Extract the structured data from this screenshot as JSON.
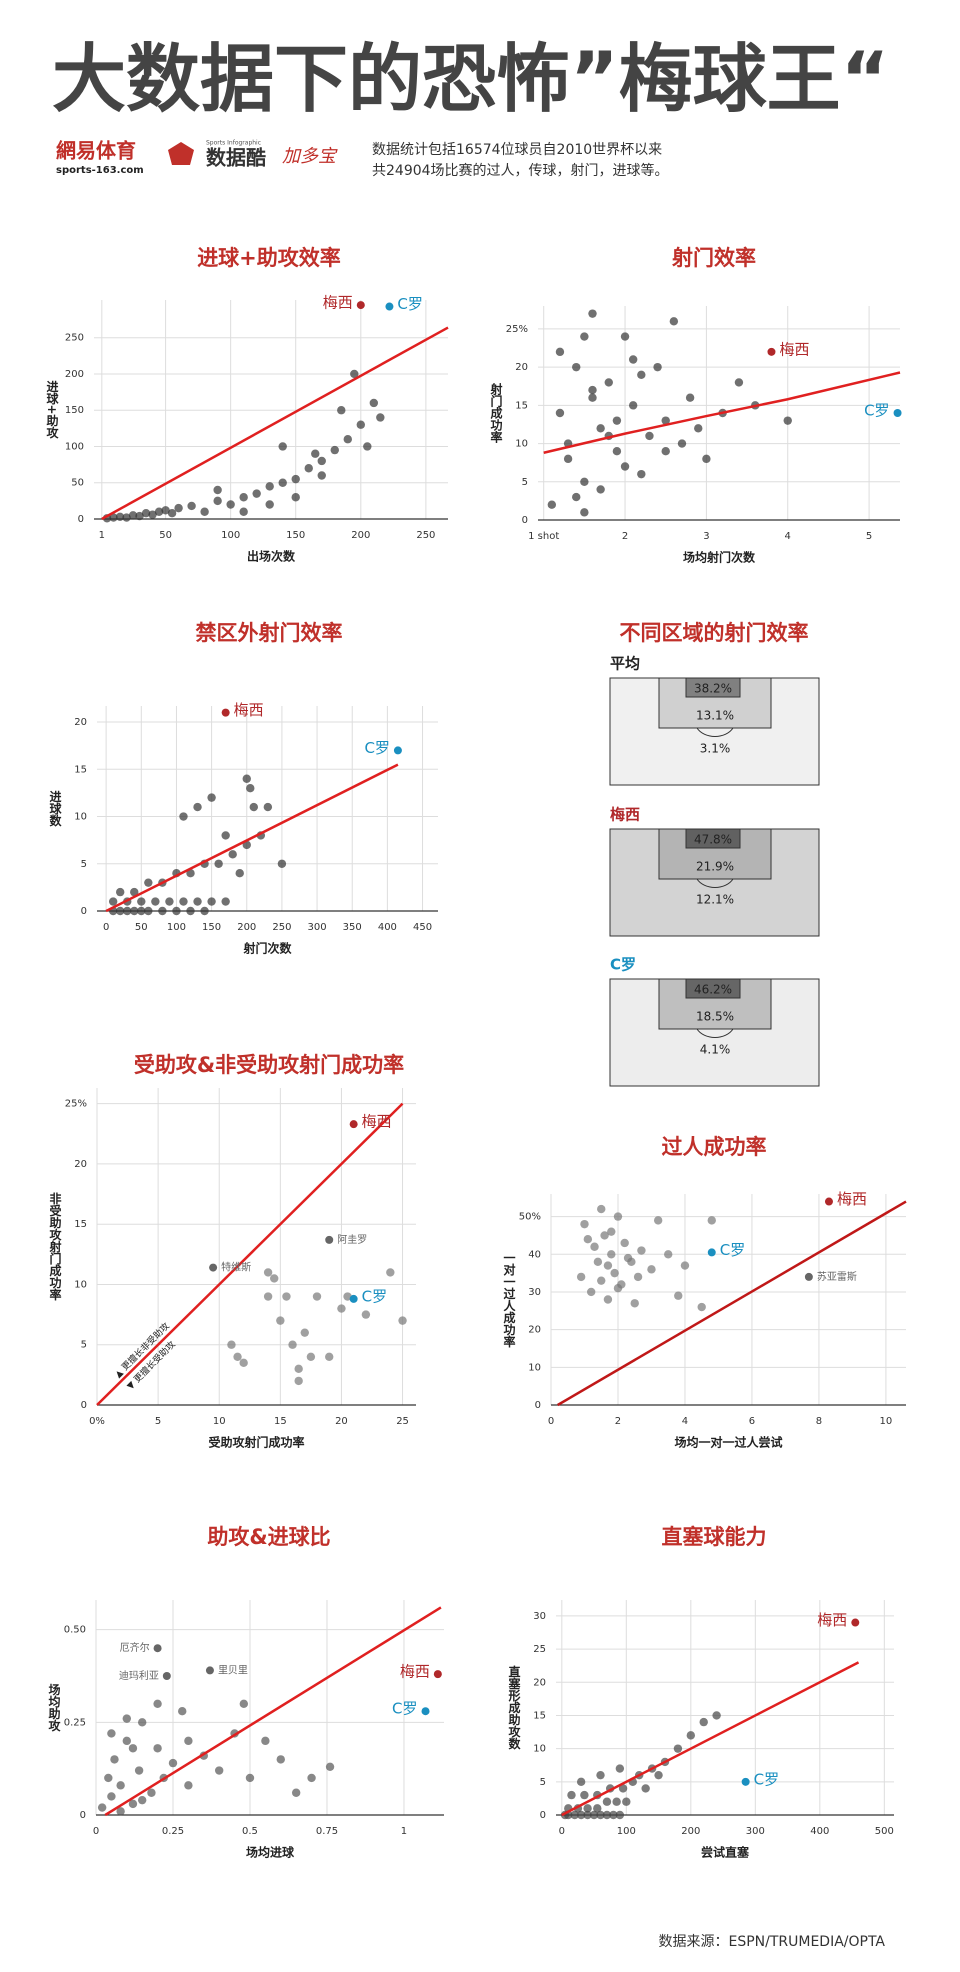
{
  "header": {
    "title": "大数据下的恐怖”梅球王“",
    "logos": [
      "網易体育",
      "sports-163.com",
      "Sports Infographic",
      "数据酷",
      "加多宝"
    ],
    "description": [
      "数据统计包括16574位球员自2010世界杯以来",
      "共24904场比赛的过人，传球，射门，进球等。"
    ]
  },
  "chart_data": [
    {
      "type": "scatter",
      "title": "进球+助攻效率",
      "x_label": "出场次数",
      "y_label": "进球+助攻",
      "xlim": [
        -5,
        267
      ],
      "ylim": [
        0,
        302
      ],
      "xticks": [
        1,
        50,
        100,
        150,
        200,
        250
      ],
      "yticks": [
        0,
        50,
        100,
        150,
        200,
        250
      ],
      "grid": true,
      "series": [
        {
          "color": "#333333",
          "x": [
            5,
            10,
            15,
            20,
            25,
            30,
            35,
            40,
            45,
            50,
            55,
            60,
            70,
            80,
            90,
            100,
            110,
            120,
            130,
            140,
            150,
            160,
            170,
            180,
            190,
            200,
            210,
            150,
            170,
            130,
            110,
            90,
            185,
            195,
            205,
            215,
            165,
            140
          ],
          "y": [
            1,
            2,
            3,
            2,
            5,
            4,
            8,
            6,
            10,
            12,
            8,
            15,
            18,
            10,
            25,
            20,
            30,
            35,
            45,
            50,
            55,
            70,
            80,
            95,
            110,
            130,
            160,
            30,
            60,
            20,
            10,
            40,
            150,
            200,
            100,
            140,
            90,
            100
          ]
        },
        {
          "name": "梅西",
          "color": "#b0282a",
          "x": [
            200
          ],
          "y": [
            295
          ]
        },
        {
          "name": "C罗",
          "color": "#1a8fc0",
          "x": [
            222
          ],
          "y": [
            293
          ]
        }
      ],
      "trend": {
        "color": "#e02020",
        "x": [
          1,
          267
        ],
        "y": [
          0,
          264
        ]
      }
    },
    {
      "type": "scatter",
      "title": "射门效率",
      "x_label": "场均射门次数",
      "y_label": "射门成功率",
      "xlim": [
        0.93,
        5.38
      ],
      "ylim": [
        0,
        28
      ],
      "xticks": [
        {
          "value": 1,
          "label": "1 shot"
        },
        2,
        3,
        4,
        5
      ],
      "yticks": [
        0,
        5,
        10,
        15,
        20,
        {
          "value": 25,
          "label": "25%"
        }
      ],
      "grid": true,
      "series": [
        {
          "color": "#333333",
          "x": [
            1.1,
            1.2,
            1.3,
            1.4,
            1.5,
            1.6,
            1.7,
            1.8,
            1.9,
            2.0,
            2.1,
            2.2,
            2.3,
            2.4,
            2.5,
            2.6,
            2.7,
            2.8,
            3.0,
            3.2,
            3.4,
            3.6,
            1.2,
            1.4,
            1.6,
            1.8,
            2.0,
            2.2,
            1.3,
            1.5,
            1.7,
            1.9,
            2.1,
            2.5,
            2.9,
            1.5,
            1.6,
            4.0
          ],
          "y": [
            2,
            14,
            8,
            20,
            5,
            27,
            12,
            18,
            9,
            24,
            15,
            6,
            11,
            20,
            13,
            26,
            10,
            16,
            8,
            14,
            18,
            15,
            22,
            3,
            17,
            11,
            7,
            19,
            10,
            24,
            4,
            13,
            21,
            9,
            12,
            1,
            16,
            13
          ]
        },
        {
          "name": "梅西",
          "color": "#b0282a",
          "x": [
            3.8
          ],
          "y": [
            22
          ]
        },
        {
          "name": "C罗",
          "color": "#1a8fc0",
          "x": [
            5.35
          ],
          "y": [
            14
          ]
        }
      ],
      "trend": {
        "color": "#e02020",
        "x": [
          1,
          2,
          3,
          4,
          5.38
        ],
        "y": [
          8.8,
          11.3,
          13.6,
          15.8,
          19.3
        ]
      }
    },
    {
      "type": "scatter",
      "title": "禁区外射门效率",
      "x_label": "射门次数",
      "y_label": "进球数",
      "xlim": [
        -13,
        472
      ],
      "ylim": [
        0,
        21.7
      ],
      "xticks": [
        0,
        50,
        100,
        150,
        200,
        250,
        300,
        350,
        400,
        450
      ],
      "yticks": [
        0,
        5,
        10,
        15,
        20
      ],
      "grid": true,
      "series": [
        {
          "color": "#333333",
          "x": [
            10,
            20,
            30,
            40,
            50,
            60,
            80,
            100,
            120,
            140,
            10,
            30,
            50,
            70,
            90,
            110,
            130,
            150,
            170,
            20,
            40,
            60,
            80,
            100,
            120,
            140,
            160,
            180,
            200,
            220,
            250,
            110,
            130,
            150,
            200,
            205,
            210,
            230,
            170,
            190
          ],
          "y": [
            0,
            0,
            0,
            0,
            0,
            0,
            0,
            0,
            0,
            0,
            1,
            1,
            1,
            1,
            1,
            1,
            1,
            1,
            1,
            2,
            2,
            3,
            3,
            4,
            4,
            5,
            5,
            6,
            7,
            8,
            5,
            10,
            11,
            12,
            14,
            13,
            11,
            11,
            8,
            4
          ]
        },
        {
          "name": "梅西",
          "color": "#b0282a",
          "x": [
            170
          ],
          "y": [
            21
          ]
        },
        {
          "name": "C罗",
          "color": "#1a8fc0",
          "x": [
            415
          ],
          "y": [
            17
          ]
        }
      ],
      "trend": {
        "color": "#e02020",
        "x": [
          0,
          415
        ],
        "y": [
          0,
          15.5
        ]
      }
    },
    {
      "type": "zones",
      "title": "不同区域的射门效率",
      "zones": [
        {
          "name": "平均",
          "color": "#222222",
          "values": [
            38.2,
            13.1,
            3.1
          ],
          "value_labels": [
            "38.2%",
            "13.1%",
            "3.1%"
          ]
        },
        {
          "name": "梅西",
          "color": "#b0282a",
          "values": [
            47.8,
            21.9,
            12.1
          ],
          "value_labels": [
            "47.8%",
            "21.9%",
            "12.1%"
          ]
        },
        {
          "name": "C罗",
          "color": "#1a8fc0",
          "values": [
            46.2,
            18.5,
            4.1
          ],
          "value_labels": [
            "46.2%",
            "18.5%",
            "4.1%"
          ]
        }
      ]
    },
    {
      "type": "scatter",
      "title": "受助攻&非受助攻射门成功率",
      "x_label": "受助攻射门成功率",
      "y_label": "非受助攻射门成功率",
      "xlim": [
        0,
        26.1
      ],
      "ylim": [
        0,
        26.3
      ],
      "xticks": [
        {
          "value": 0,
          "label": "0%"
        },
        5,
        10,
        15,
        20,
        25
      ],
      "yticks": [
        0,
        5,
        10,
        15,
        20,
        {
          "value": 25,
          "label": "25%"
        }
      ],
      "grid": true,
      "annotations": [
        "▲ 更擅长非受助攻",
        "▼ 更擅长受助攻"
      ],
      "series": [
        {
          "color": "#777777",
          "x": [
            11,
            11.5,
            12,
            14,
            14.5,
            15,
            15.5,
            16,
            16.5,
            17,
            17.5,
            18,
            19,
            20,
            20.5,
            22,
            24,
            25,
            16.5,
            14
          ],
          "y": [
            5,
            4,
            3.5,
            11,
            10.5,
            7,
            9,
            5,
            2,
            6,
            4,
            9,
            4,
            8,
            9,
            7.5,
            11,
            7,
            3,
            9
          ]
        },
        {
          "name": "阿圭罗",
          "color": "#666666",
          "x": [
            19
          ],
          "y": [
            13.7
          ]
        },
        {
          "name": "特维斯",
          "color": "#666666",
          "x": [
            9.5
          ],
          "y": [
            11.4
          ]
        },
        {
          "name": "梅西",
          "color": "#b0282a",
          "x": [
            21
          ],
          "y": [
            23.3
          ]
        },
        {
          "name": "C罗",
          "color": "#1a8fc0",
          "x": [
            21
          ],
          "y": [
            8.8
          ]
        }
      ],
      "trend": {
        "color": "#e02020",
        "x": [
          0,
          25
        ],
        "y": [
          0,
          25
        ]
      }
    },
    {
      "type": "scatter",
      "title": "过人成功率",
      "x_label": "场均一对一过人尝试",
      "y_label": "一对一过人成功率",
      "xlim": [
        0,
        10.6
      ],
      "ylim": [
        0,
        56
      ],
      "xticks": [
        0,
        2,
        4,
        6,
        8,
        10
      ],
      "yticks": [
        0,
        10,
        20,
        30,
        40,
        {
          "value": 50,
          "label": "50%"
        }
      ],
      "grid": true,
      "series": [
        {
          "color": "#777777",
          "x": [
            0.9,
            1.0,
            1.2,
            1.3,
            1.4,
            1.5,
            1.6,
            1.7,
            1.8,
            1.9,
            2.0,
            2.1,
            2.2,
            2.4,
            2.5,
            2.7,
            3.0,
            3.2,
            3.5,
            3.8,
            4.0,
            4.5,
            4.8,
            1.5,
            1.8,
            2.0,
            2.3,
            1.1,
            1.7,
            2.6
          ],
          "y": [
            34,
            48,
            30,
            42,
            38,
            52,
            45,
            28,
            40,
            35,
            50,
            32,
            43,
            38,
            27,
            41,
            36,
            49,
            40,
            29,
            37,
            26,
            49,
            33,
            46,
            31,
            39,
            44,
            37,
            34
          ]
        },
        {
          "name": "苏亚雷斯",
          "color": "#666666",
          "x": [
            7.7
          ],
          "y": [
            34
          ]
        },
        {
          "name": "梅西",
          "color": "#b0282a",
          "x": [
            8.3
          ],
          "y": [
            54
          ]
        },
        {
          "name": "C罗",
          "color": "#1a8fc0",
          "x": [
            4.8
          ],
          "y": [
            40.5
          ]
        }
      ],
      "trend": {
        "color": "#c01818",
        "x": [
          0.2,
          10.6
        ],
        "y": [
          0,
          54
        ]
      }
    },
    {
      "type": "scatter",
      "title": "助攻&进球比",
      "x_label": "场均进球",
      "y_label": "场均助攻",
      "xlim": [
        0,
        1.13
      ],
      "ylim": [
        0,
        0.58
      ],
      "xticks": [
        0,
        0.25,
        0.5,
        0.75,
        1
      ],
      "yticks": [
        0,
        0.25,
        {
          "value": 0.5,
          "label": "0.50"
        }
      ],
      "grid": true,
      "series": [
        {
          "color": "#555555",
          "x": [
            0.02,
            0.04,
            0.05,
            0.06,
            0.08,
            0.1,
            0.12,
            0.14,
            0.15,
            0.18,
            0.2,
            0.22,
            0.25,
            0.28,
            0.3,
            0.35,
            0.4,
            0.45,
            0.5,
            0.55,
            0.6,
            0.65,
            0.7,
            0.76,
            0.05,
            0.08,
            0.1,
            0.12,
            0.15,
            0.2,
            0.3,
            0.48
          ],
          "y": [
            0.02,
            0.1,
            0.05,
            0.15,
            0.08,
            0.2,
            0.03,
            0.12,
            0.25,
            0.06,
            0.18,
            0.1,
            0.14,
            0.28,
            0.08,
            0.16,
            0.12,
            0.22,
            0.1,
            0.2,
            0.15,
            0.06,
            0.1,
            0.13,
            0.22,
            0.01,
            0.26,
            0.18,
            0.04,
            0.3,
            0.2,
            0.3
          ]
        },
        {
          "name": "厄齐尔",
          "color": "#666666",
          "x": [
            0.2
          ],
          "y": [
            0.45
          ]
        },
        {
          "name": "迪玛利亚",
          "color": "#666666",
          "x": [
            0.23
          ],
          "y": [
            0.375
          ]
        },
        {
          "name": "里贝里",
          "color": "#666666",
          "x": [
            0.37
          ],
          "y": [
            0.39
          ]
        },
        {
          "name": "梅西",
          "color": "#b0282a",
          "x": [
            1.11
          ],
          "y": [
            0.38
          ]
        },
        {
          "name": "C罗",
          "color": "#1a8fc0",
          "x": [
            1.07
          ],
          "y": [
            0.28
          ]
        }
      ],
      "trend": {
        "color": "#e02020",
        "x": [
          0.03,
          1.12
        ],
        "y": [
          0,
          0.56
        ]
      }
    },
    {
      "type": "scatter",
      "title": "直塞球能力",
      "x_label": "尝试直塞",
      "y_label": "直塞形成助攻数",
      "xlim": [
        -9,
        515
      ],
      "ylim": [
        0,
        32.4
      ],
      "xticks": [
        0,
        100,
        200,
        300,
        400,
        500
      ],
      "yticks": [
        0,
        5,
        10,
        15,
        20,
        25,
        30
      ],
      "grid": true,
      "series": [
        {
          "color": "#444444",
          "x": [
            5,
            10,
            20,
            30,
            40,
            50,
            60,
            70,
            80,
            90,
            10,
            25,
            40,
            55,
            70,
            85,
            100,
            15,
            35,
            55,
            75,
            95,
            110,
            120,
            140,
            160,
            180,
            200,
            220,
            240,
            130,
            150,
            30,
            60,
            90
          ],
          "y": [
            0,
            0,
            0,
            0,
            0,
            0,
            0,
            0,
            0,
            0,
            1,
            1,
            1,
            1,
            2,
            2,
            2,
            3,
            3,
            3,
            4,
            4,
            5,
            6,
            7,
            8,
            10,
            12,
            14,
            15,
            4,
            6,
            5,
            6,
            7
          ]
        },
        {
          "name": "梅西",
          "color": "#b0282a",
          "x": [
            455
          ],
          "y": [
            29
          ]
        },
        {
          "name": "C罗",
          "color": "#1a8fc0",
          "x": [
            285
          ],
          "y": [
            5
          ]
        }
      ],
      "trend": {
        "color": "#e02020",
        "x": [
          0,
          460
        ],
        "y": [
          0,
          23
        ]
      }
    }
  ],
  "source": "数据来源：ESPN/TRUMEDIA/OPTA"
}
